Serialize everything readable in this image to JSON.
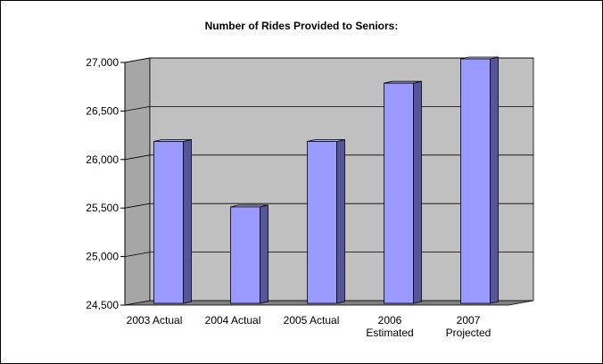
{
  "chart_data": {
    "type": "bar",
    "title": "Number of Rides Provided to Seniors:",
    "categories": [
      [
        "2003 Actual"
      ],
      [
        "2004 Actual"
      ],
      [
        "2005 Actual"
      ],
      [
        "2006",
        "Estimated"
      ],
      [
        "2007",
        "Projected"
      ]
    ],
    "values": [
      26150,
      25475,
      26150,
      26750,
      27000
    ],
    "ylim": [
      24500,
      27000
    ],
    "yticks": [
      24500,
      25000,
      25500,
      26000,
      26500,
      27000
    ],
    "ytick_labels": [
      "24,500",
      "25,000",
      "25,500",
      "26,000",
      "26,500",
      "27,000"
    ],
    "grid": true,
    "style": "3d",
    "colors": {
      "bar_front": "#9999ff",
      "bar_side": "#55559a",
      "bar_top": "#b3b3ff",
      "back_wall": "#c0c0c0",
      "side_wall": "#a6a6a6",
      "floor": "#7f7f7f",
      "grid": "#000000"
    }
  }
}
